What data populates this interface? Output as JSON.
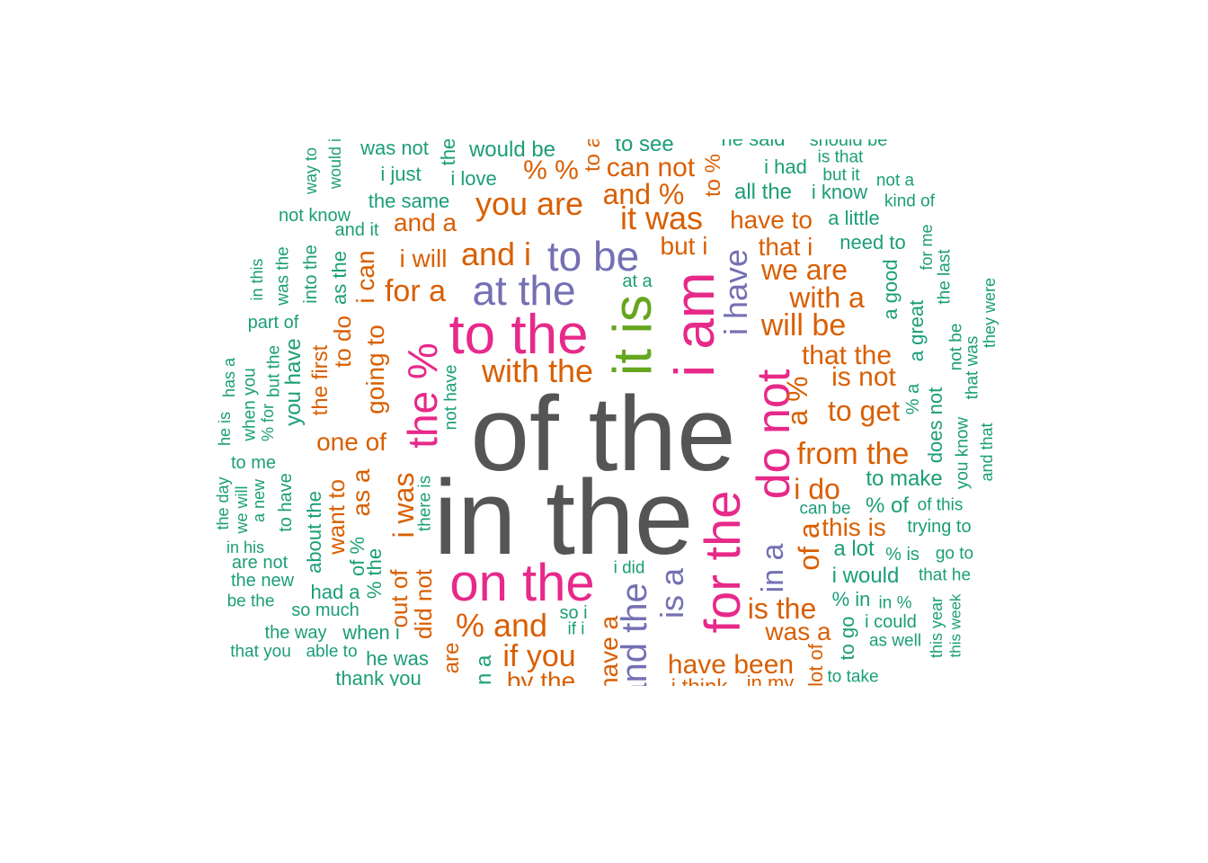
{
  "colors": {
    "c1": "#1b9e77",
    "c2": "#d95f02",
    "c3": "#7570b3",
    "c4": "#e7298a",
    "c5": "#66a61e",
    "c6": "#555555"
  },
  "words": [
    {
      "text": "of the",
      "color": "c6"
    },
    {
      "text": "in the",
      "color": "c6"
    },
    {
      "text": "to the",
      "color": "c4"
    },
    {
      "text": "on the",
      "color": "c4"
    },
    {
      "text": "i am",
      "color": "c4"
    },
    {
      "text": "it is",
      "color": "c5"
    },
    {
      "text": "for the",
      "color": "c4"
    },
    {
      "text": "do not",
      "color": "c4"
    },
    {
      "text": "the %",
      "color": "c4"
    },
    {
      "text": "to be",
      "color": "c3"
    },
    {
      "text": "at the",
      "color": "c3"
    },
    {
      "text": "i have",
      "color": "c3"
    },
    {
      "text": "is a",
      "color": "c3"
    },
    {
      "text": "in a",
      "color": "c3"
    },
    {
      "text": "and the",
      "color": "c3"
    },
    {
      "text": "with the",
      "color": "c2"
    },
    {
      "text": "you are",
      "color": "c2"
    },
    {
      "text": "it was",
      "color": "c2"
    },
    {
      "text": "and i",
      "color": "c2"
    },
    {
      "text": "% and",
      "color": "c2"
    },
    {
      "text": "if you",
      "color": "c2"
    },
    {
      "text": "for a",
      "color": "c2"
    },
    {
      "text": "will be",
      "color": "c2"
    },
    {
      "text": "we are",
      "color": "c2"
    },
    {
      "text": "with a",
      "color": "c2"
    },
    {
      "text": "that the",
      "color": "c2"
    },
    {
      "text": "is not",
      "color": "c2"
    },
    {
      "text": "to get",
      "color": "c2"
    },
    {
      "text": "from the",
      "color": "c2"
    },
    {
      "text": "i do",
      "color": "c2"
    },
    {
      "text": "this is",
      "color": "c2"
    },
    {
      "text": "is the",
      "color": "c2"
    },
    {
      "text": "was a",
      "color": "c2"
    },
    {
      "text": "have been",
      "color": "c2"
    },
    {
      "text": "have to",
      "color": "c2"
    },
    {
      "text": "that i",
      "color": "c2"
    },
    {
      "text": "but i",
      "color": "c2"
    },
    {
      "text": "can not",
      "color": "c2"
    },
    {
      "text": "and %",
      "color": "c2"
    },
    {
      "text": "% %",
      "color": "c2"
    },
    {
      "text": "and a",
      "color": "c2"
    },
    {
      "text": "i will",
      "color": "c2"
    },
    {
      "text": "one of",
      "color": "c2"
    },
    {
      "text": "i was",
      "color": "c2"
    },
    {
      "text": "a %",
      "color": "c2"
    },
    {
      "text": "of a",
      "color": "c2"
    },
    {
      "text": "i can",
      "color": "c2"
    },
    {
      "text": "going to",
      "color": "c2"
    },
    {
      "text": "as a",
      "color": "c2"
    },
    {
      "text": "want to",
      "color": "c2"
    },
    {
      "text": "out of",
      "color": "c2"
    },
    {
      "text": "did not",
      "color": "c2"
    },
    {
      "text": "to do",
      "color": "c2"
    },
    {
      "text": "the first",
      "color": "c2"
    },
    {
      "text": "by the",
      "color": "c2"
    },
    {
      "text": "have a",
      "color": "c2"
    },
    {
      "text": "are",
      "color": "c2"
    },
    {
      "text": "to %",
      "color": "c2"
    },
    {
      "text": "to a",
      "color": "c2"
    },
    {
      "text": "i think",
      "color": "c2"
    },
    {
      "text": "in my",
      "color": "c2"
    },
    {
      "text": "lot of",
      "color": "c2"
    },
    {
      "text": "would be",
      "color": "c1"
    },
    {
      "text": "was not",
      "color": "c1"
    },
    {
      "text": "to see",
      "color": "c1"
    },
    {
      "text": "he said",
      "color": "c1"
    },
    {
      "text": "should be",
      "color": "c1"
    },
    {
      "text": "i just",
      "color": "c1"
    },
    {
      "text": "i love",
      "color": "c1"
    },
    {
      "text": "the",
      "color": "c1"
    },
    {
      "text": "i had",
      "color": "c1"
    },
    {
      "text": "is that",
      "color": "c1"
    },
    {
      "text": "but it",
      "color": "c1"
    },
    {
      "text": "not a",
      "color": "c1"
    },
    {
      "text": "kind of",
      "color": "c1"
    },
    {
      "text": "all the",
      "color": "c1"
    },
    {
      "text": "i know",
      "color": "c1"
    },
    {
      "text": "the same",
      "color": "c1"
    },
    {
      "text": "not know",
      "color": "c1"
    },
    {
      "text": "a little",
      "color": "c1"
    },
    {
      "text": "and it",
      "color": "c1"
    },
    {
      "text": "need to",
      "color": "c1"
    },
    {
      "text": "at a",
      "color": "c1"
    },
    {
      "text": "way to",
      "color": "c1"
    },
    {
      "text": "would i",
      "color": "c1"
    },
    {
      "text": "for me",
      "color": "c1"
    },
    {
      "text": "the last",
      "color": "c1"
    },
    {
      "text": "a good",
      "color": "c1"
    },
    {
      "text": "a great",
      "color": "c1"
    },
    {
      "text": "they were",
      "color": "c1"
    },
    {
      "text": "not be",
      "color": "c1"
    },
    {
      "text": "that was",
      "color": "c1"
    },
    {
      "text": "you know",
      "color": "c1"
    },
    {
      "text": "and that",
      "color": "c1"
    },
    {
      "text": "does not",
      "color": "c1"
    },
    {
      "text": "% a",
      "color": "c1"
    },
    {
      "text": "to make",
      "color": "c1"
    },
    {
      "text": "can be",
      "color": "c1"
    },
    {
      "text": "% of",
      "color": "c1"
    },
    {
      "text": "of this",
      "color": "c1"
    },
    {
      "text": "trying to",
      "color": "c1"
    },
    {
      "text": "a lot",
      "color": "c1"
    },
    {
      "text": "% is",
      "color": "c1"
    },
    {
      "text": "go to",
      "color": "c1"
    },
    {
      "text": "i would",
      "color": "c1"
    },
    {
      "text": "that he",
      "color": "c1"
    },
    {
      "text": "% in",
      "color": "c1"
    },
    {
      "text": "in %",
      "color": "c1"
    },
    {
      "text": "i could",
      "color": "c1"
    },
    {
      "text": "as well",
      "color": "c1"
    },
    {
      "text": "to go",
      "color": "c1"
    },
    {
      "text": "to take",
      "color": "c1"
    },
    {
      "text": "this year",
      "color": "c1"
    },
    {
      "text": "this week",
      "color": "c1"
    },
    {
      "text": "i did",
      "color": "c1"
    },
    {
      "text": "so i",
      "color": "c1"
    },
    {
      "text": "if i",
      "color": "c1"
    },
    {
      "text": "not have",
      "color": "c1"
    },
    {
      "text": "there is",
      "color": "c1"
    },
    {
      "text": "in this",
      "color": "c1"
    },
    {
      "text": "was the",
      "color": "c1"
    },
    {
      "text": "into the",
      "color": "c1"
    },
    {
      "text": "as the",
      "color": "c1"
    },
    {
      "text": "part of",
      "color": "c1"
    },
    {
      "text": "but the",
      "color": "c1"
    },
    {
      "text": "you have",
      "color": "c1"
    },
    {
      "text": "has a",
      "color": "c1"
    },
    {
      "text": "he is",
      "color": "c1"
    },
    {
      "text": "when you",
      "color": "c1"
    },
    {
      "text": "% for",
      "color": "c1"
    },
    {
      "text": "to me",
      "color": "c1"
    },
    {
      "text": "the day",
      "color": "c1"
    },
    {
      "text": "we will",
      "color": "c1"
    },
    {
      "text": "a new",
      "color": "c1"
    },
    {
      "text": "to have",
      "color": "c1"
    },
    {
      "text": "about the",
      "color": "c1"
    },
    {
      "text": "in his",
      "color": "c1"
    },
    {
      "text": "are not",
      "color": "c1"
    },
    {
      "text": "the new",
      "color": "c1"
    },
    {
      "text": "be the",
      "color": "c1"
    },
    {
      "text": "had a",
      "color": "c1"
    },
    {
      "text": "so much",
      "color": "c1"
    },
    {
      "text": "the way",
      "color": "c1"
    },
    {
      "text": "when i",
      "color": "c1"
    },
    {
      "text": "that you",
      "color": "c1"
    },
    {
      "text": "able to",
      "color": "c1"
    },
    {
      "text": "he was",
      "color": "c1"
    },
    {
      "text": "thank you",
      "color": "c1"
    },
    {
      "text": "% the",
      "color": "c1"
    },
    {
      "text": "of %",
      "color": "c1"
    },
    {
      "text": "on a",
      "color": "c1"
    }
  ]
}
